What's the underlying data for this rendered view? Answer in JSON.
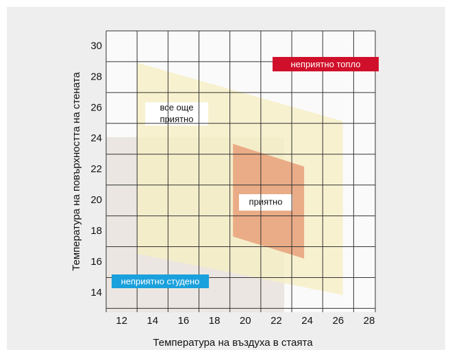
{
  "chart_data": {
    "type": "region",
    "x_label": "Температура на въздуха в стаята",
    "y_label": "Температура на повърхността на стената",
    "xlim": [
      11,
      28.4
    ],
    "ylim": [
      12.75,
      31
    ],
    "xticks": [
      12,
      14,
      16,
      18,
      20,
      22,
      24,
      26,
      28
    ],
    "yticks": [
      14,
      16,
      18,
      20,
      22,
      24,
      26,
      28,
      30
    ],
    "regions": [
      {
        "name": "все още приятно",
        "color": "#f6efc4",
        "points": [
          [
            13.0,
            28.93
          ],
          [
            26.3,
            25.14
          ],
          [
            26.3,
            13.87
          ],
          [
            13.0,
            16.54
          ]
        ]
      },
      {
        "name": "приятно",
        "color": "#e8a07a",
        "points": [
          [
            19.2,
            23.67
          ],
          [
            23.8,
            22.2
          ],
          [
            23.8,
            16.23
          ],
          [
            19.2,
            17.66
          ]
        ]
      }
    ],
    "annotations": [
      {
        "text": "неприятно топло",
        "color": "#d0102a"
      },
      {
        "text": "неприятно студено",
        "color": "#1aa0dc"
      }
    ]
  }
}
